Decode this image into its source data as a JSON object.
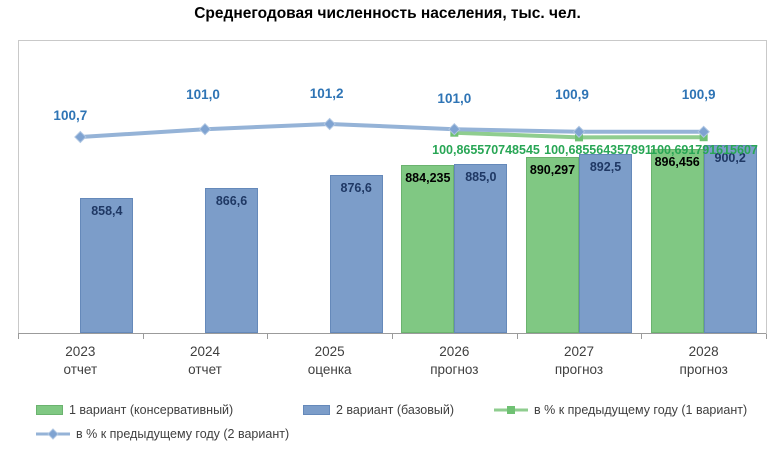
{
  "title": "Среднегодовая численность населения, тыс. чел.",
  "chart_data": {
    "type": "bar",
    "subtype": "combo-bar-line",
    "title": "Среднегодовая численность населения, тыс. чел.",
    "categories": [
      "2023",
      "2024",
      "2025",
      "2026",
      "2027",
      "2028"
    ],
    "category_sublabels": [
      "отчет",
      "отчет",
      "оценка",
      "прогноз",
      "прогноз",
      "прогноз"
    ],
    "series": [
      {
        "name": "1 вариант (консервативный)",
        "kind": "bar",
        "color": "#80C883",
        "border_color": "#6BB36F",
        "label_color": "#000000",
        "values": [
          null,
          null,
          null,
          884.235,
          890.297,
          896.456
        ],
        "labels": [
          null,
          null,
          null,
          "884,235",
          "890,297",
          "896,456"
        ]
      },
      {
        "name": "2 вариант (базовый)",
        "kind": "bar",
        "color": "#7C9DC9",
        "border_color": "#6589BA",
        "label_color": "#1F3864",
        "values": [
          858.4,
          866.6,
          876.6,
          885.0,
          892.5,
          900.2
        ],
        "labels": [
          "858,4",
          "866,6",
          "876,6",
          "885,0",
          "892,5",
          "900,2"
        ]
      },
      {
        "name": "в % к предыдущему году (1 вариант)",
        "kind": "line",
        "color": "#8FCD8F",
        "marker": "square",
        "marker_color": "#6FC173",
        "label_color": "#28A655",
        "values": [
          null,
          null,
          null,
          100.865570748545,
          100.685564357891,
          100.691791615607
        ],
        "labels": [
          null,
          null,
          null,
          "100,865570748545",
          "100,685564357891",
          "100,691791615607"
        ]
      },
      {
        "name": "в % к предыдущему году (2 вариант)",
        "kind": "line",
        "color": "#95B3D7",
        "marker": "diamond",
        "marker_color": "#7FA3D1",
        "label_color": "#2E74B5",
        "values": [
          100.7,
          101.0,
          101.2,
          101.0,
          100.9,
          100.9
        ],
        "labels": [
          "100,7",
          "101,0",
          "101,2",
          "101,0",
          "100,9",
          "100,9"
        ]
      }
    ],
    "value_axis": {
      "visible": false,
      "implied_min": 753
    },
    "secondary_axis": {
      "visible": false
    },
    "grid": false,
    "legend_position": "bottom"
  }
}
